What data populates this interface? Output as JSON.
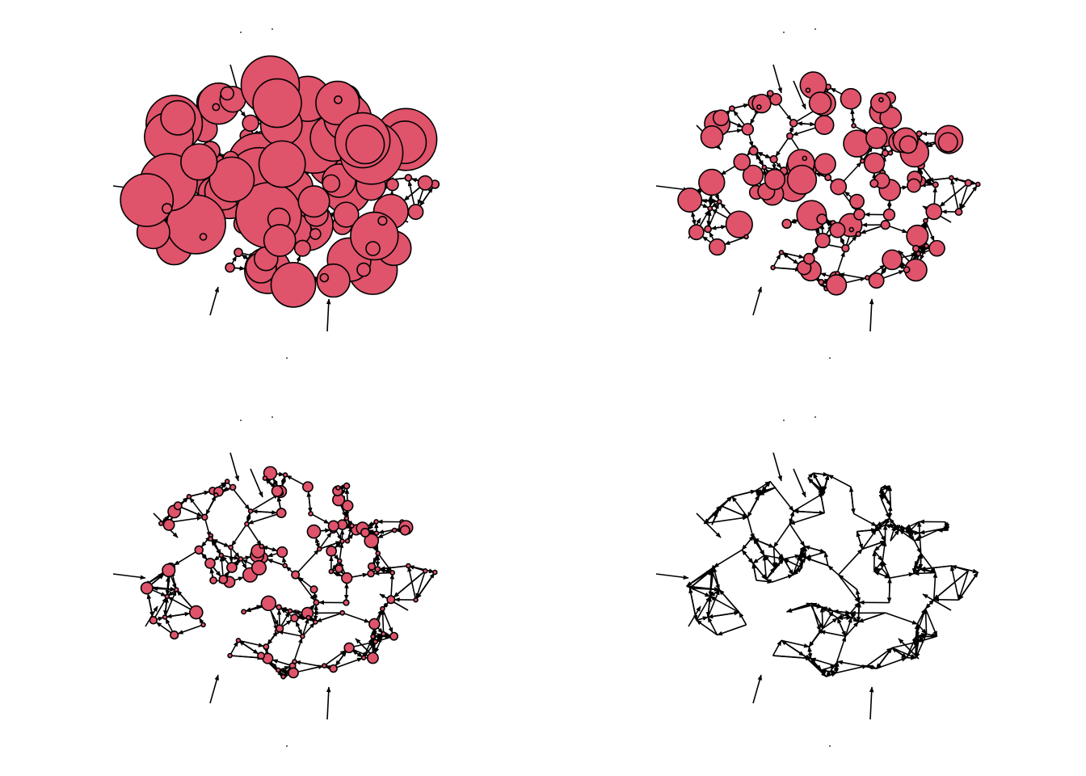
{
  "node_color": "#df536b",
  "edge_color": "#000000"
}
